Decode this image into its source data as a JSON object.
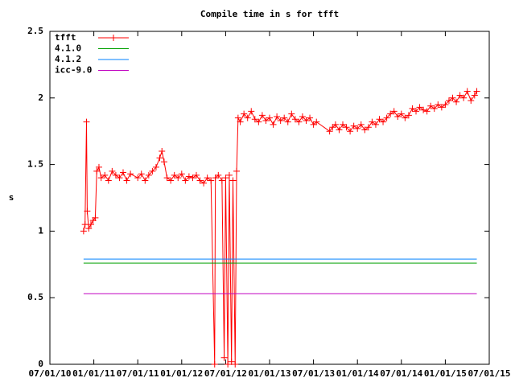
{
  "chart_data": {
    "type": "line",
    "title": "Compile time in s for tfft",
    "y_label": "s",
    "xlim": [
      0,
      60
    ],
    "ylim": [
      0,
      2.5
    ],
    "xticks": [
      {
        "value": 0,
        "label": "07/01/10"
      },
      {
        "value": 6,
        "label": "01/01/11"
      },
      {
        "value": 12,
        "label": "07/01/11"
      },
      {
        "value": 18,
        "label": "01/01/12"
      },
      {
        "value": 24,
        "label": "07/01/12"
      },
      {
        "value": 30,
        "label": "01/01/13"
      },
      {
        "value": 36,
        "label": "07/01/13"
      },
      {
        "value": 42,
        "label": "01/01/14"
      },
      {
        "value": 48,
        "label": "07/01/14"
      },
      {
        "value": 54,
        "label": "01/01/15"
      },
      {
        "value": 60,
        "label": "07/01/15"
      }
    ],
    "yticks": [
      0,
      0.5,
      1,
      1.5,
      2,
      2.5
    ],
    "legend": "top-left",
    "series": [
      {
        "name": "tfft",
        "color": "#ff0000",
        "markers": true,
        "x": [
          4.6,
          4.8,
          5.0,
          5.1,
          5.3,
          5.6,
          5.9,
          6.2,
          6.4,
          6.7,
          7.0,
          7.5,
          8.0,
          8.5,
          9.0,
          9.5,
          10.0,
          10.5,
          11.0,
          12.0,
          12.5,
          13.0,
          13.5,
          14.0,
          14.5,
          15.0,
          15.3,
          15.6,
          16.0,
          16.5,
          17.0,
          17.5,
          18.0,
          18.5,
          19.0,
          19.5,
          20.0,
          20.5,
          21.0,
          21.5,
          22.0,
          22.5,
          22.6,
          23.0,
          23.5,
          23.8,
          24.0,
          24.3,
          24.5,
          24.8,
          25.0,
          25.3,
          25.5,
          25.7,
          26.0,
          26.5,
          27.0,
          27.5,
          28.0,
          28.5,
          29.0,
          29.5,
          30.0,
          30.5,
          31.0,
          31.5,
          32.0,
          32.5,
          33.0,
          33.5,
          34.0,
          34.5,
          35.0,
          35.5,
          36.0,
          36.4,
          38.2,
          38.6,
          39.0,
          39.5,
          40.0,
          40.5,
          41.0,
          41.5,
          42.0,
          42.5,
          43.0,
          43.5,
          44.0,
          44.5,
          45.0,
          45.5,
          46.0,
          46.5,
          47.0,
          47.5,
          48.0,
          48.5,
          49.0,
          49.5,
          50.0,
          50.5,
          51.0,
          51.5,
          52.0,
          52.5,
          53.0,
          53.5,
          54.0,
          54.5,
          55.0,
          55.5,
          56.0,
          56.5,
          57.0,
          57.5,
          58.0,
          58.3
        ],
        "values": [
          1.0,
          1.05,
          1.82,
          1.15,
          1.02,
          1.05,
          1.08,
          1.1,
          1.45,
          1.48,
          1.4,
          1.42,
          1.38,
          1.45,
          1.42,
          1.4,
          1.44,
          1.38,
          1.43,
          1.4,
          1.43,
          1.38,
          1.42,
          1.45,
          1.48,
          1.55,
          1.6,
          1.52,
          1.4,
          1.38,
          1.42,
          1.4,
          1.43,
          1.38,
          1.41,
          1.4,
          1.42,
          1.38,
          1.36,
          1.4,
          1.38,
          0.0,
          1.4,
          1.42,
          1.38,
          0.05,
          1.4,
          0.0,
          1.42,
          0.02,
          1.38,
          0.0,
          1.45,
          1.85,
          1.82,
          1.88,
          1.85,
          1.9,
          1.84,
          1.82,
          1.87,
          1.83,
          1.85,
          1.8,
          1.86,
          1.83,
          1.85,
          1.82,
          1.88,
          1.84,
          1.82,
          1.86,
          1.83,
          1.85,
          1.8,
          1.82,
          1.75,
          1.78,
          1.8,
          1.76,
          1.8,
          1.78,
          1.75,
          1.79,
          1.77,
          1.8,
          1.76,
          1.78,
          1.82,
          1.8,
          1.84,
          1.82,
          1.85,
          1.88,
          1.9,
          1.86,
          1.88,
          1.85,
          1.87,
          1.92,
          1.9,
          1.93,
          1.91,
          1.9,
          1.94,
          1.92,
          1.95,
          1.93,
          1.95,
          1.98,
          2.0,
          1.97,
          2.02,
          2.0,
          2.05,
          1.98,
          2.02,
          2.05
        ]
      },
      {
        "name": "4.1.0",
        "color": "#00a000",
        "x": [
          4.6,
          58.3
        ],
        "values": [
          0.76,
          0.76
        ]
      },
      {
        "name": "4.1.2",
        "color": "#0080ff",
        "x": [
          4.6,
          58.3
        ],
        "values": [
          0.79,
          0.79
        ]
      },
      {
        "name": "icc-9.0",
        "color": "#c000c0",
        "x": [
          4.6,
          58.3
        ],
        "values": [
          0.53,
          0.53
        ]
      }
    ]
  }
}
